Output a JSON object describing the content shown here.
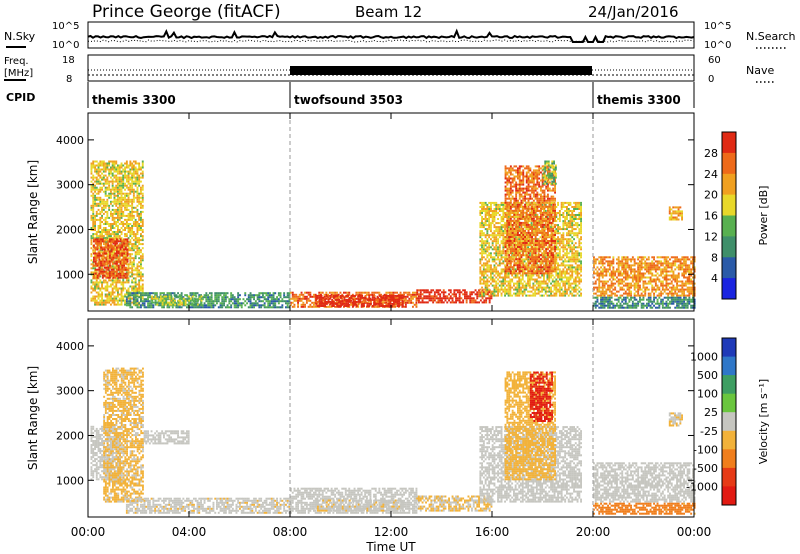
{
  "header": {
    "station": "Prince George (fitACF)",
    "beam": "Beam 12",
    "date": "24/Jan/2016"
  },
  "noise_panel": {
    "left_label": "N.Sky",
    "right_label": "N.Search",
    "tick_top": "10^5",
    "tick_bottom": "10^0"
  },
  "freq_panel": {
    "left_label_line1": "Freq.",
    "left_label_line2": "[MHz]",
    "left_ticks": [
      "18",
      "8"
    ],
    "right_label": "Nave",
    "right_ticks": [
      "60",
      "0"
    ]
  },
  "cpid_panel": {
    "label": "CPID",
    "segments": [
      {
        "name": "themis 3300",
        "start": 0,
        "end": 8
      },
      {
        "name": "twofsound 3503",
        "start": 8,
        "end": 20
      },
      {
        "name": "themis 3300",
        "start": 20,
        "end": 24
      }
    ]
  },
  "x_axis": {
    "label": "Time UT",
    "ticks": [
      "00:00",
      "04:00",
      "08:00",
      "12:00",
      "16:00",
      "20:00",
      "00:00"
    ],
    "tick_hours": [
      0,
      4,
      8,
      12,
      16,
      20,
      24
    ]
  },
  "y_axis": {
    "label": "Slant Range [km]",
    "ticks": [
      "1000",
      "2000",
      "3000",
      "4000"
    ],
    "tick_values": [
      1000,
      2000,
      3000,
      4000
    ],
    "range": [
      180,
      4600
    ]
  },
  "colorbars": {
    "power": {
      "label": "Power [dB]",
      "ticks": [
        "4",
        "8",
        "12",
        "16",
        "20",
        "24",
        "28"
      ],
      "colors": [
        "#1a24e0",
        "#2a5aa8",
        "#3f8f6a",
        "#58b050",
        "#e8d82a",
        "#f0a020",
        "#ee6a1a",
        "#e02a14"
      ]
    },
    "velocity": {
      "label": "Velocity [m s⁻¹]",
      "ticks": [
        "1000",
        "500",
        "100",
        "25",
        "-25",
        "-100",
        "-500",
        "-1000"
      ],
      "colors": [
        "#1f3ab8",
        "#2f77c8",
        "#3e9e62",
        "#6ac63e",
        "#c6c6c0",
        "#f2b23a",
        "#f07e1c",
        "#e63a16",
        "#e21a12"
      ]
    }
  },
  "chart_data": [
    {
      "type": "heatmap",
      "title": "Power [dB]",
      "xlabel": "Time UT",
      "ylabel": "Slant Range [km]",
      "xlim": [
        0,
        24
      ],
      "ylim": [
        180,
        4600
      ],
      "color_range": [
        0,
        30
      ],
      "regions": [
        {
          "t0": 0.1,
          "t1": 2.2,
          "r0": 300,
          "r1": 3500,
          "value": 18
        },
        {
          "t0": 0.2,
          "t1": 1.6,
          "r0": 900,
          "r1": 1800,
          "value": 26
        },
        {
          "t0": 1.5,
          "t1": 8.0,
          "r0": 240,
          "r1": 600,
          "value": 10
        },
        {
          "t0": 2.5,
          "t1": 4.5,
          "r0": 300,
          "r1": 500,
          "value": 15
        },
        {
          "t0": 8.0,
          "t1": 13.0,
          "r0": 250,
          "r1": 600,
          "value": 24
        },
        {
          "t0": 9.0,
          "t1": 12.5,
          "r0": 270,
          "r1": 500,
          "value": 29
        },
        {
          "t0": 13.0,
          "t1": 16.0,
          "r0": 350,
          "r1": 650,
          "value": 29
        },
        {
          "t0": 15.5,
          "t1": 19.5,
          "r0": 500,
          "r1": 2600,
          "value": 18
        },
        {
          "t0": 16.5,
          "t1": 18.5,
          "r0": 1000,
          "r1": 3400,
          "value": 24
        },
        {
          "t0": 18.0,
          "t1": 18.5,
          "r0": 3000,
          "r1": 3500,
          "value": 14
        },
        {
          "t0": 20.0,
          "t1": 24.0,
          "r0": 500,
          "r1": 1400,
          "value": 22
        },
        {
          "t0": 20.0,
          "t1": 24.0,
          "r0": 230,
          "r1": 500,
          "value": 9
        },
        {
          "t0": 23.0,
          "t1": 23.5,
          "r0": 2200,
          "r1": 2500,
          "value": 20
        }
      ]
    },
    {
      "type": "heatmap",
      "title": "Velocity [m s⁻¹]",
      "xlabel": "Time UT",
      "ylabel": "Slant Range [km]",
      "xlim": [
        0,
        24
      ],
      "ylim": [
        180,
        4600
      ],
      "color_range": [
        -1000,
        1000
      ],
      "regions": [
        {
          "t0": 0.1,
          "t1": 1.3,
          "r0": 1000,
          "r1": 2200,
          "value": 0
        },
        {
          "t0": 0.6,
          "t1": 2.2,
          "r0": 500,
          "r1": 3500,
          "value": -150
        },
        {
          "t0": 1.5,
          "t1": 8.0,
          "r0": 250,
          "r1": 600,
          "value": -60
        },
        {
          "t0": 2.2,
          "t1": 4.0,
          "r0": 1800,
          "r1": 2100,
          "value": 0
        },
        {
          "t0": 8.0,
          "t1": 13.0,
          "r0": 250,
          "r1": 800,
          "value": 0
        },
        {
          "t0": 9.0,
          "t1": 12.5,
          "r0": 300,
          "r1": 550,
          "value": -70
        },
        {
          "t0": 13.0,
          "t1": 16.0,
          "r0": 300,
          "r1": 650,
          "value": -120
        },
        {
          "t0": 15.5,
          "t1": 19.5,
          "r0": 500,
          "r1": 2200,
          "value": 0
        },
        {
          "t0": 16.5,
          "t1": 18.5,
          "r0": 1000,
          "r1": 3400,
          "value": -200
        },
        {
          "t0": 17.5,
          "t1": 18.4,
          "r0": 2300,
          "r1": 3400,
          "value": -800
        },
        {
          "t0": 20.0,
          "t1": 24.0,
          "r0": 500,
          "r1": 1400,
          "value": 0
        },
        {
          "t0": 20.0,
          "t1": 24.0,
          "r0": 230,
          "r1": 500,
          "value": -400
        },
        {
          "t0": 23.0,
          "t1": 23.5,
          "r0": 2200,
          "r1": 2500,
          "value": -100
        }
      ]
    }
  ]
}
